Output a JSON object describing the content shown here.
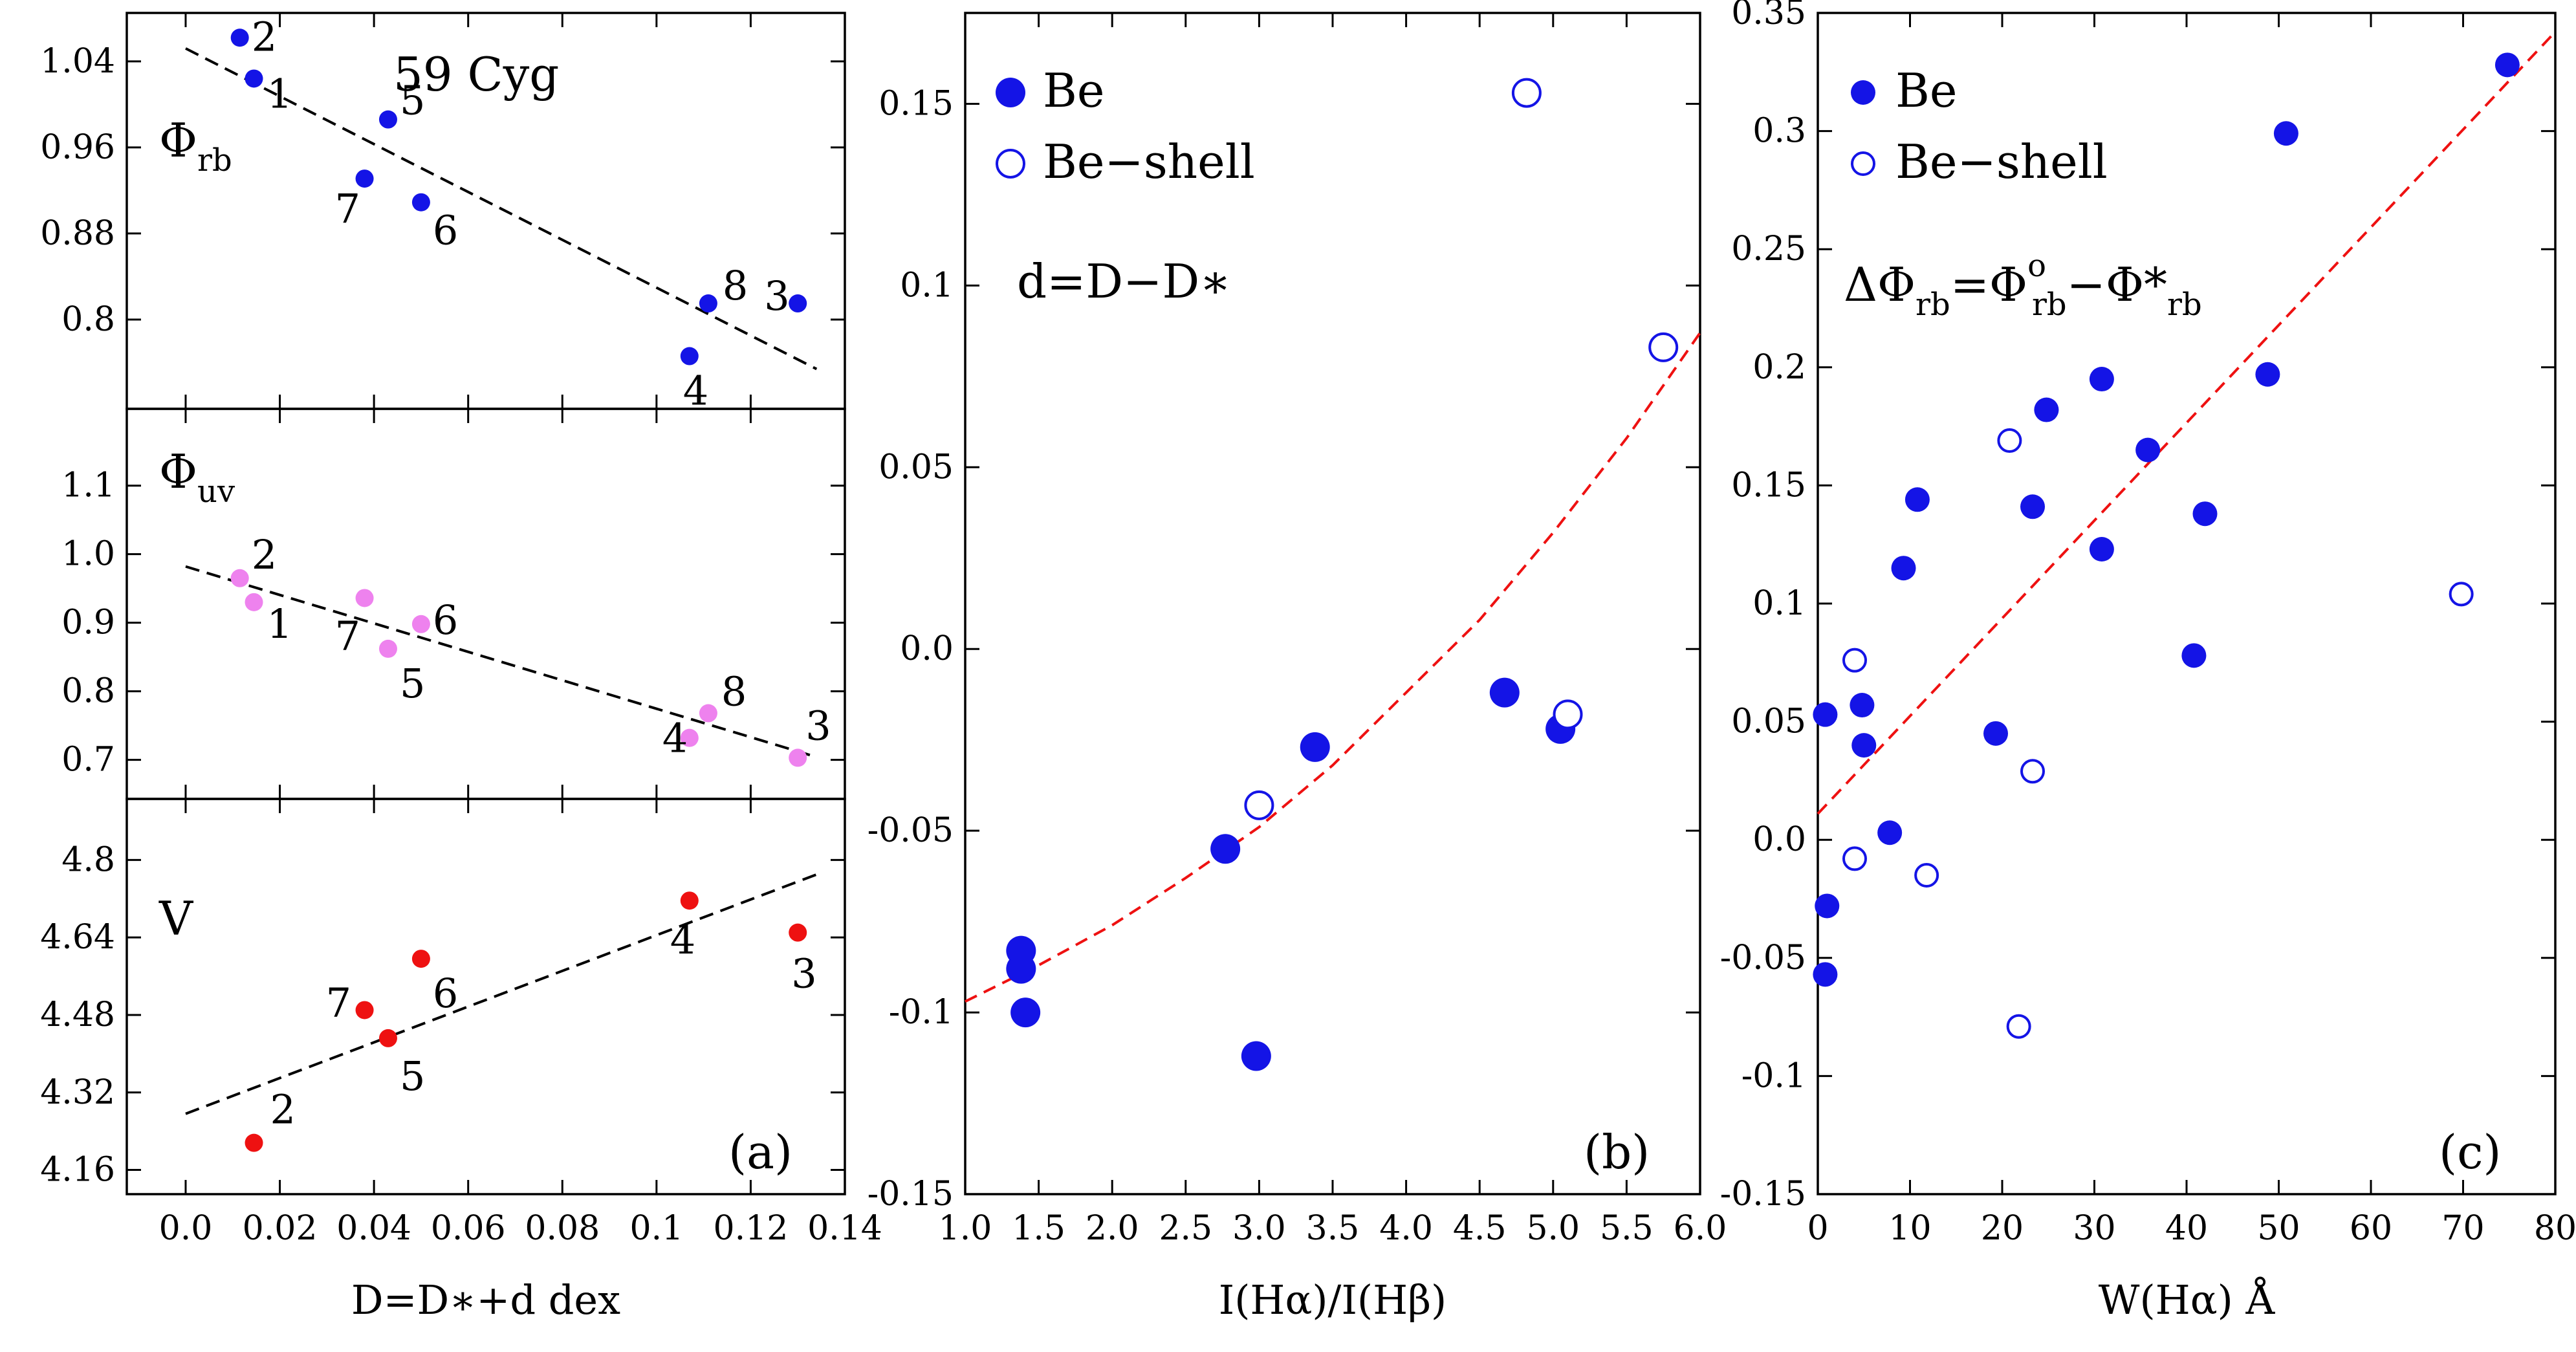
{
  "chart_data": [
    {
      "id": "a1",
      "type": "scatter",
      "title": "59 Cyg",
      "ylabel_symbol": "Φ",
      "ylabel_sub": "rb",
      "panel_label": "",
      "xlim": [
        -0.0125,
        0.14
      ],
      "ylim": [
        0.717,
        1.085
      ],
      "xticks": [
        0.0,
        0.02,
        0.04,
        0.06,
        0.08,
        0.1,
        0.12,
        0.14
      ],
      "yticks": [
        0.8,
        0.88,
        0.96,
        1.04
      ],
      "ytick_labels": [
        "0.8",
        "0.88",
        "0.96",
        "1.04"
      ],
      "points": [
        {
          "x": 0.0115,
          "y": 1.062,
          "label": "2"
        },
        {
          "x": 0.0145,
          "y": 1.024,
          "label": "1"
        },
        {
          "x": 0.043,
          "y": 0.986,
          "label": "5"
        },
        {
          "x": 0.038,
          "y": 0.931,
          "label": "7"
        },
        {
          "x": 0.05,
          "y": 0.909,
          "label": "6"
        },
        {
          "x": 0.111,
          "y": 0.815,
          "label": "8"
        },
        {
          "x": 0.107,
          "y": 0.766,
          "label": "4"
        },
        {
          "x": 0.13,
          "y": 0.815,
          "label": "3"
        }
      ],
      "point_color": "#1414e6",
      "fit_line": {
        "x": [
          0.0,
          0.134
        ],
        "y": [
          1.052,
          0.754
        ]
      }
    },
    {
      "id": "a2",
      "type": "scatter",
      "ylabel_symbol": "Φ",
      "ylabel_sub": "uv",
      "panel_label": "",
      "xlim": [
        -0.0125,
        0.14
      ],
      "ylim": [
        0.643,
        1.212
      ],
      "yticks": [
        0.7,
        0.8,
        0.9,
        1.0,
        1.1
      ],
      "ytick_labels": [
        "0.7",
        "0.8",
        "0.9",
        "1.0",
        "1.1"
      ],
      "points": [
        {
          "x": 0.0115,
          "y": 0.965,
          "label": "2"
        },
        {
          "x": 0.0145,
          "y": 0.93,
          "label": "1"
        },
        {
          "x": 0.038,
          "y": 0.936,
          "label": "7"
        },
        {
          "x": 0.05,
          "y": 0.898,
          "label": "6"
        },
        {
          "x": 0.043,
          "y": 0.862,
          "label": "5"
        },
        {
          "x": 0.111,
          "y": 0.768,
          "label": "8"
        },
        {
          "x": 0.107,
          "y": 0.732,
          "label": "4"
        },
        {
          "x": 0.13,
          "y": 0.703,
          "label": "3"
        }
      ],
      "point_color": "#ee82ee",
      "fit_line": {
        "x": [
          0.0,
          0.134
        ],
        "y": [
          0.982,
          0.704
        ]
      }
    },
    {
      "id": "a3",
      "type": "scatter",
      "ylabel_symbol": "V",
      "panel_label": "(a)",
      "xlabel": "D=D*+d dex",
      "xlim": [
        -0.0125,
        0.14
      ],
      "ylim": [
        4.11,
        4.926
      ],
      "xticks": [
        0.0,
        0.02,
        0.04,
        0.06,
        0.08,
        0.1,
        0.12,
        0.14
      ],
      "xtick_labels": [
        "0.0",
        "0.02",
        "0.04",
        "0.06",
        "0.08",
        "0.1",
        "0.12",
        "0.14"
      ],
      "yticks": [
        4.16,
        4.32,
        4.48,
        4.64,
        4.8
      ],
      "ytick_labels": [
        "4.16",
        "4.32",
        "4.48",
        "4.64",
        "4.8"
      ],
      "points": [
        {
          "x": 0.0145,
          "y": 4.216,
          "label": "2"
        },
        {
          "x": 0.038,
          "y": 4.49,
          "label": "7"
        },
        {
          "x": 0.05,
          "y": 4.596,
          "label": "6"
        },
        {
          "x": 0.043,
          "y": 4.432,
          "label": "5"
        },
        {
          "x": 0.107,
          "y": 4.716,
          "label": "4"
        },
        {
          "x": 0.13,
          "y": 4.65,
          "label": "3"
        }
      ],
      "point_color": "#ee1111",
      "fit_line": {
        "x": [
          0.0,
          0.134
        ],
        "y": [
          4.276,
          4.77
        ]
      }
    },
    {
      "id": "b",
      "type": "scatter",
      "xlabel": "I(Hα)/I(Hβ)",
      "annotation": "d=D−D*",
      "panel_label": "(b)",
      "legend": [
        "Be",
        "Be−shell"
      ],
      "xlim": [
        1.0,
        6.0
      ],
      "ylim": [
        -0.15,
        0.175
      ],
      "xticks": [
        1.0,
        1.5,
        2.0,
        2.5,
        3.0,
        3.5,
        4.0,
        4.5,
        5.0,
        5.5,
        6.0
      ],
      "xtick_labels": [
        "1.0",
        "1.5",
        "2.0",
        "2.5",
        "3.0",
        "3.5",
        "4.0",
        "4.5",
        "5.0",
        "5.5",
        "6.0"
      ],
      "yticks": [
        -0.15,
        -0.1,
        -0.05,
        0.0,
        0.05,
        0.1,
        0.15
      ],
      "ytick_labels": [
        "-0.15",
        "-0.1",
        "-0.05",
        "0.0",
        "0.05",
        "0.1",
        "0.15"
      ],
      "series": [
        {
          "name": "Be",
          "filled": true,
          "x": [
            1.38,
            1.38,
            1.41,
            2.77,
            2.98,
            3.38,
            4.67,
            5.05
          ],
          "y": [
            -0.083,
            -0.088,
            -0.1,
            -0.055,
            -0.112,
            -0.027,
            -0.012,
            -0.022
          ]
        },
        {
          "name": "Be−shell",
          "filled": false,
          "x": [
            3.0,
            4.82,
            5.1,
            5.75
          ],
          "y": [
            -0.043,
            0.153,
            -0.018,
            0.083
          ]
        }
      ],
      "point_color": "#1414e6",
      "fit_curve": {
        "x": [
          1.0,
          1.5,
          2.0,
          2.5,
          3.0,
          3.5,
          4.0,
          4.5,
          5.0,
          5.5,
          6.0
        ],
        "y": [
          -0.097,
          -0.087,
          -0.076,
          -0.063,
          -0.049,
          -0.032,
          -0.012,
          0.008,
          0.032,
          0.058,
          0.087
        ]
      },
      "fit_color": "#ee1111"
    },
    {
      "id": "c",
      "type": "scatter",
      "xlabel": "W(Hα) Å",
      "annotation": "ΔΦrb=Φ°rb−Φ*rb",
      "panel_label": "(c)",
      "legend": [
        "Be",
        "Be−shell"
      ],
      "xlim": [
        0,
        80
      ],
      "ylim": [
        -0.15,
        0.35
      ],
      "xticks": [
        0,
        10,
        20,
        30,
        40,
        50,
        60,
        70,
        80
      ],
      "xtick_labels": [
        "0",
        "10",
        "20",
        "30",
        "40",
        "50",
        "60",
        "70",
        "80"
      ],
      "yticks": [
        -0.15,
        -0.1,
        -0.05,
        0.0,
        0.05,
        0.1,
        0.15,
        0.2,
        0.25,
        0.3,
        0.35
      ],
      "ytick_labels": [
        "-0.15",
        "-0.1",
        "-0.05",
        "0.0",
        "0.05",
        "0.1",
        "0.15",
        "0.2",
        "0.25",
        "0.3",
        "0.35"
      ],
      "series": [
        {
          "name": "Be",
          "filled": true,
          "x": [
            0.8,
            1.0,
            0.8,
            4.8,
            5.0,
            7.8,
            9.3,
            10.8,
            19.3,
            23.3,
            24.8,
            30.8,
            30.8,
            35.8,
            40.8,
            42.0,
            48.8,
            50.8,
            74.8
          ],
          "y": [
            0.053,
            -0.028,
            -0.057,
            0.057,
            0.04,
            0.003,
            0.115,
            0.144,
            0.045,
            0.141,
            0.182,
            0.195,
            0.123,
            0.165,
            0.078,
            0.138,
            0.197,
            0.299,
            0.328
          ]
        },
        {
          "name": "Be−shell",
          "filled": false,
          "x": [
            4.0,
            4.0,
            11.8,
            20.8,
            21.8,
            23.3,
            69.8
          ],
          "y": [
            0.076,
            -0.008,
            -0.015,
            0.169,
            -0.079,
            0.029,
            0.104
          ]
        }
      ],
      "point_color": "#1414e6",
      "fit_line": {
        "x": [
          0,
          80
        ],
        "y": [
          0.011,
          0.342
        ]
      },
      "fit_color": "#ee1111"
    }
  ]
}
